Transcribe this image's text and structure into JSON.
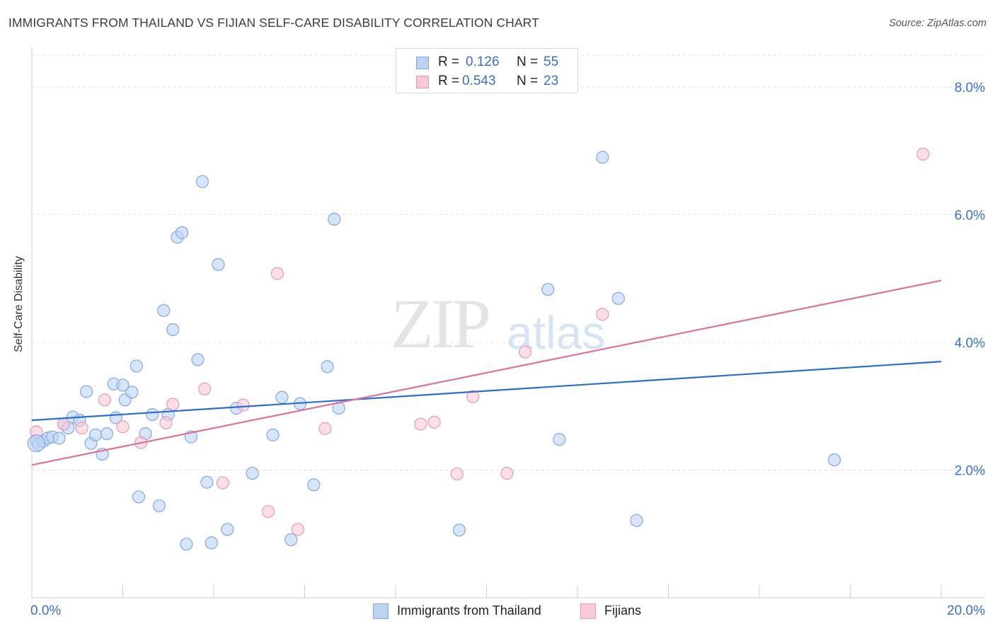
{
  "header": {
    "title": "IMMIGRANTS FROM THAILAND VS FIJIAN SELF-CARE DISABILITY CORRELATION CHART",
    "source": "Source: ZipAtlas.com"
  },
  "watermark": {
    "zip": "ZIP",
    "atlas": "atlas"
  },
  "legend_stats": [
    {
      "r_label": "R =",
      "r_value": "0.126",
      "n_label": "N =",
      "n_value": "55",
      "color": "#7fa9e6",
      "fill": "#bcd3f4"
    },
    {
      "r_label": "R =",
      "r_value": "0.543",
      "n_label": "N =",
      "n_value": "23",
      "color": "#ec98b4",
      "fill": "#f8c9d8"
    }
  ],
  "bottom_legend": [
    {
      "label": "Immigrants from Thailand",
      "color": "#7fa9e6",
      "fill": "#bcd3f4"
    },
    {
      "label": "Fijians",
      "color": "#ec98b4",
      "fill": "#f8c9d8"
    }
  ],
  "chart_data": {
    "type": "scatter",
    "xlabel": "",
    "ylabel": "Self-Care Disability",
    "xlim": [
      0,
      20
    ],
    "ylim": [
      0,
      8.5
    ],
    "x_tick_labels": [
      "0.0%",
      "20.0%"
    ],
    "y_ticks": [
      2,
      4,
      6,
      8
    ],
    "y_tick_labels": [
      "2.0%",
      "4.0%",
      "6.0%",
      "8.0%"
    ],
    "grid": true,
    "series": [
      {
        "name": "Immigrants from Thailand",
        "color": "#7fa9e6",
        "fill": "#bcd3f4",
        "line_color": "#2a6fd0",
        "trend": [
          [
            0,
            2.78
          ],
          [
            20,
            3.7
          ]
        ],
        "points": [
          [
            0.1,
            2.45
          ],
          [
            0.15,
            2.4
          ],
          [
            0.25,
            2.45
          ],
          [
            0.35,
            2.5
          ],
          [
            0.45,
            2.52
          ],
          [
            0.6,
            2.5
          ],
          [
            0.7,
            2.72
          ],
          [
            0.8,
            2.66
          ],
          [
            0.9,
            2.83
          ],
          [
            1.05,
            2.78
          ],
          [
            1.2,
            3.23
          ],
          [
            1.3,
            2.42
          ],
          [
            1.4,
            2.55
          ],
          [
            1.55,
            2.25
          ],
          [
            1.65,
            2.57
          ],
          [
            1.8,
            3.35
          ],
          [
            1.85,
            2.82
          ],
          [
            2.0,
            3.33
          ],
          [
            2.05,
            3.1
          ],
          [
            2.2,
            3.22
          ],
          [
            2.3,
            3.63
          ],
          [
            2.35,
            1.58
          ],
          [
            2.5,
            2.57
          ],
          [
            2.65,
            2.87
          ],
          [
            2.8,
            1.44
          ],
          [
            2.9,
            4.5
          ],
          [
            3.0,
            2.87
          ],
          [
            3.1,
            4.2
          ],
          [
            3.2,
            5.65
          ],
          [
            3.3,
            5.72
          ],
          [
            3.4,
            0.84
          ],
          [
            3.5,
            2.52
          ],
          [
            3.65,
            3.73
          ],
          [
            3.75,
            6.52
          ],
          [
            3.85,
            1.81
          ],
          [
            3.95,
            0.86
          ],
          [
            4.1,
            5.22
          ],
          [
            4.3,
            1.07
          ],
          [
            4.5,
            2.97
          ],
          [
            4.85,
            1.95
          ],
          [
            5.3,
            2.55
          ],
          [
            5.5,
            3.14
          ],
          [
            5.7,
            0.91
          ],
          [
            5.9,
            3.04
          ],
          [
            6.2,
            1.77
          ],
          [
            6.5,
            3.62
          ],
          [
            6.65,
            5.93
          ],
          [
            6.75,
            2.97
          ],
          [
            9.4,
            1.06
          ],
          [
            11.35,
            4.83
          ],
          [
            11.6,
            2.48
          ],
          [
            12.55,
            6.9
          ],
          [
            12.9,
            4.69
          ],
          [
            13.3,
            1.21
          ],
          [
            17.65,
            2.16
          ]
        ]
      },
      {
        "name": "Fijians",
        "color": "#ec98b4",
        "fill": "#f8c9d8",
        "line_color": "#e07098",
        "trend": [
          [
            0,
            2.08
          ],
          [
            20,
            4.97
          ]
        ],
        "points": [
          [
            0.1,
            2.6
          ],
          [
            0.7,
            2.72
          ],
          [
            1.1,
            2.66
          ],
          [
            1.6,
            3.1
          ],
          [
            2.0,
            2.68
          ],
          [
            2.4,
            2.43
          ],
          [
            2.95,
            2.74
          ],
          [
            3.1,
            3.03
          ],
          [
            3.8,
            3.27
          ],
          [
            4.2,
            1.8
          ],
          [
            4.65,
            3.02
          ],
          [
            5.2,
            1.35
          ],
          [
            5.4,
            5.08
          ],
          [
            5.85,
            1.07
          ],
          [
            6.45,
            2.65
          ],
          [
            8.55,
            2.72
          ],
          [
            8.85,
            2.75
          ],
          [
            9.35,
            1.94
          ],
          [
            9.7,
            3.15
          ],
          [
            10.45,
            1.95
          ],
          [
            10.85,
            3.85
          ],
          [
            12.55,
            4.44
          ],
          [
            19.6,
            6.95
          ]
        ]
      }
    ]
  }
}
